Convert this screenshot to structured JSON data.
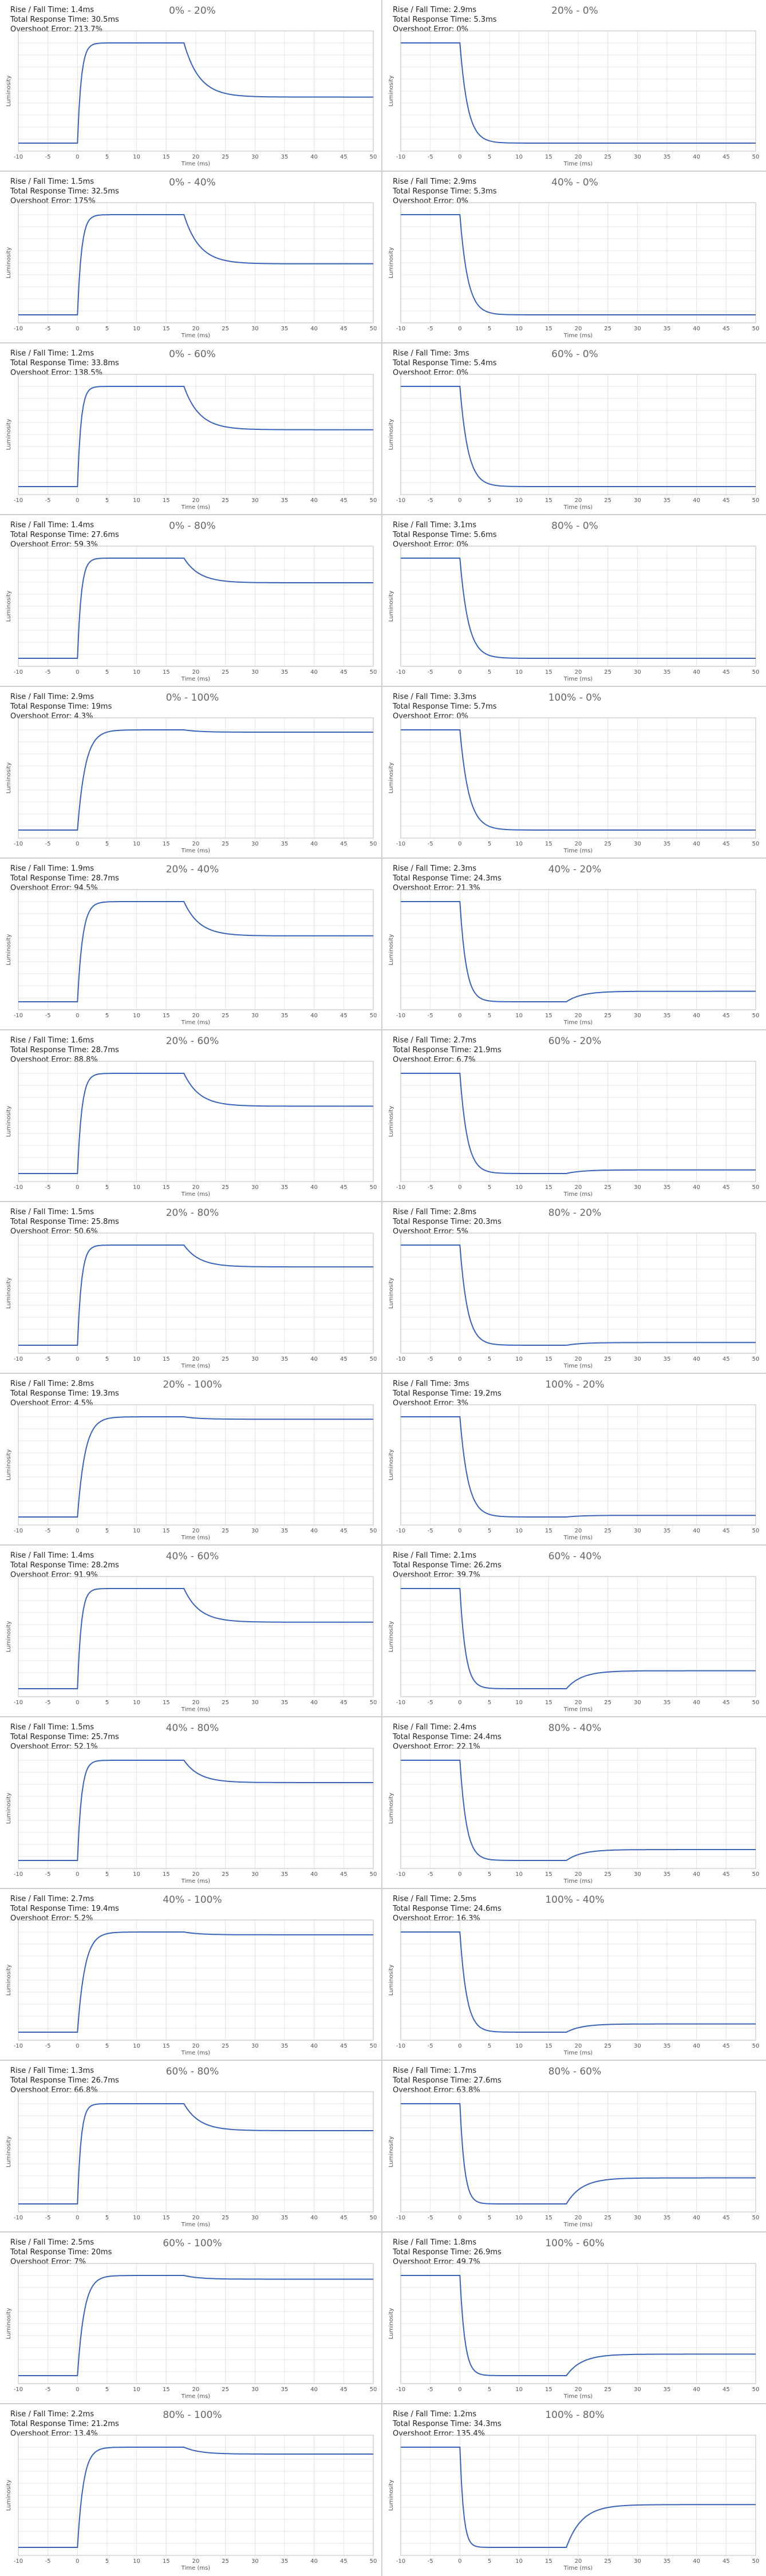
{
  "axis": {
    "xlabel": "Time (ms)",
    "ylabel": "Luminosity",
    "x_ticks": [
      "-10",
      "-5",
      "0",
      "5",
      "10",
      "15",
      "20",
      "25",
      "30",
      "35",
      "40",
      "45",
      "50"
    ],
    "rise_prefix": "Rise / Fall Time: ",
    "total_prefix": "Total Response Time: ",
    "overshoot_prefix": "Overshoot Error: "
  },
  "colors": {
    "line": "#3a63b8",
    "grid": "#e4e4e4",
    "axis": "#666666"
  },
  "chart_data": [
    {
      "type": "line",
      "title": "0% - 20%",
      "rise_fall": "1.4ms",
      "total": "30.5ms",
      "overshoot": "213.7%",
      "xlim": [
        -10,
        50
      ],
      "from": 0,
      "to": 20
    },
    {
      "type": "line",
      "title": "20% - 0%",
      "rise_fall": "2.9ms",
      "total": "5.3ms",
      "overshoot": "0%",
      "xlim": [
        -10,
        50
      ],
      "from": 20,
      "to": 0
    },
    {
      "type": "line",
      "title": "0% - 40%",
      "rise_fall": "1.5ms",
      "total": "32.5ms",
      "overshoot": "175%",
      "xlim": [
        -10,
        50
      ],
      "from": 0,
      "to": 40
    },
    {
      "type": "line",
      "title": "40% - 0%",
      "rise_fall": "2.9ms",
      "total": "5.3ms",
      "overshoot": "0%",
      "xlim": [
        -10,
        50
      ],
      "from": 40,
      "to": 0
    },
    {
      "type": "line",
      "title": "0% - 60%",
      "rise_fall": "1.2ms",
      "total": "33.8ms",
      "overshoot": "138.5%",
      "xlim": [
        -10,
        50
      ],
      "from": 0,
      "to": 60
    },
    {
      "type": "line",
      "title": "60% - 0%",
      "rise_fall": "3ms",
      "total": "5.4ms",
      "overshoot": "0%",
      "xlim": [
        -10,
        50
      ],
      "from": 60,
      "to": 0
    },
    {
      "type": "line",
      "title": "0% - 80%",
      "rise_fall": "1.4ms",
      "total": "27.6ms",
      "overshoot": "59.3%",
      "xlim": [
        -10,
        50
      ],
      "from": 0,
      "to": 80
    },
    {
      "type": "line",
      "title": "80% - 0%",
      "rise_fall": "3.1ms",
      "total": "5.6ms",
      "overshoot": "0%",
      "xlim": [
        -10,
        50
      ],
      "from": 80,
      "to": 0
    },
    {
      "type": "line",
      "title": "0% - 100%",
      "rise_fall": "2.9ms",
      "total": "19ms",
      "overshoot": "4.3%",
      "xlim": [
        -10,
        50
      ],
      "from": 0,
      "to": 100
    },
    {
      "type": "line",
      "title": "100% - 0%",
      "rise_fall": "3.3ms",
      "total": "5.7ms",
      "overshoot": "0%",
      "xlim": [
        -10,
        50
      ],
      "from": 100,
      "to": 0
    },
    {
      "type": "line",
      "title": "20% - 40%",
      "rise_fall": "1.9ms",
      "total": "28.7ms",
      "overshoot": "94.5%",
      "xlim": [
        -10,
        50
      ],
      "from": 20,
      "to": 40
    },
    {
      "type": "line",
      "title": "40% - 20%",
      "rise_fall": "2.3ms",
      "total": "24.3ms",
      "overshoot": "21.3%",
      "xlim": [
        -10,
        50
      ],
      "from": 40,
      "to": 20
    },
    {
      "type": "line",
      "title": "20% - 60%",
      "rise_fall": "1.6ms",
      "total": "28.7ms",
      "overshoot": "88.8%",
      "xlim": [
        -10,
        50
      ],
      "from": 20,
      "to": 60
    },
    {
      "type": "line",
      "title": "60% - 20%",
      "rise_fall": "2.7ms",
      "total": "21.9ms",
      "overshoot": "6.7%",
      "xlim": [
        -10,
        50
      ],
      "from": 60,
      "to": 20
    },
    {
      "type": "line",
      "title": "20% - 80%",
      "rise_fall": "1.5ms",
      "total": "25.8ms",
      "overshoot": "50.6%",
      "xlim": [
        -10,
        50
      ],
      "from": 20,
      "to": 80
    },
    {
      "type": "line",
      "title": "80% - 20%",
      "rise_fall": "2.8ms",
      "total": "20.3ms",
      "overshoot": "5%",
      "xlim": [
        -10,
        50
      ],
      "from": 80,
      "to": 20
    },
    {
      "type": "line",
      "title": "20% - 100%",
      "rise_fall": "2.8ms",
      "total": "19.3ms",
      "overshoot": "4.5%",
      "xlim": [
        -10,
        50
      ],
      "from": 20,
      "to": 100
    },
    {
      "type": "line",
      "title": "100% - 20%",
      "rise_fall": "3ms",
      "total": "19.2ms",
      "overshoot": "3%",
      "xlim": [
        -10,
        50
      ],
      "from": 100,
      "to": 20
    },
    {
      "type": "line",
      "title": "40% - 60%",
      "rise_fall": "1.4ms",
      "total": "28.2ms",
      "overshoot": "91.9%",
      "xlim": [
        -10,
        50
      ],
      "from": 40,
      "to": 60
    },
    {
      "type": "line",
      "title": "60% - 40%",
      "rise_fall": "2.1ms",
      "total": "26.2ms",
      "overshoot": "39.7%",
      "xlim": [
        -10,
        50
      ],
      "from": 60,
      "to": 40
    },
    {
      "type": "line",
      "title": "40% - 80%",
      "rise_fall": "1.5ms",
      "total": "25.7ms",
      "overshoot": "52.1%",
      "xlim": [
        -10,
        50
      ],
      "from": 40,
      "to": 80
    },
    {
      "type": "line",
      "title": "80% - 40%",
      "rise_fall": "2.4ms",
      "total": "24.4ms",
      "overshoot": "22.1%",
      "xlim": [
        -10,
        50
      ],
      "from": 80,
      "to": 40
    },
    {
      "type": "line",
      "title": "40% - 100%",
      "rise_fall": "2.7ms",
      "total": "19.4ms",
      "overshoot": "5.2%",
      "xlim": [
        -10,
        50
      ],
      "from": 40,
      "to": 100
    },
    {
      "type": "line",
      "title": "100% - 40%",
      "rise_fall": "2.5ms",
      "total": "24.6ms",
      "overshoot": "16.3%",
      "xlim": [
        -10,
        50
      ],
      "from": 100,
      "to": 40
    },
    {
      "type": "line",
      "title": "60% - 80%",
      "rise_fall": "1.3ms",
      "total": "26.7ms",
      "overshoot": "66.8%",
      "xlim": [
        -10,
        50
      ],
      "from": 60,
      "to": 80
    },
    {
      "type": "line",
      "title": "80% - 60%",
      "rise_fall": "1.7ms",
      "total": "27.6ms",
      "overshoot": "63.8%",
      "xlim": [
        -10,
        50
      ],
      "from": 80,
      "to": 60
    },
    {
      "type": "line",
      "title": "60% - 100%",
      "rise_fall": "2.5ms",
      "total": "20ms",
      "overshoot": "7%",
      "xlim": [
        -10,
        50
      ],
      "from": 60,
      "to": 100
    },
    {
      "type": "line",
      "title": "100% - 60%",
      "rise_fall": "1.8ms",
      "total": "26.9ms",
      "overshoot": "49.7%",
      "xlim": [
        -10,
        50
      ],
      "from": 100,
      "to": 60
    },
    {
      "type": "line",
      "title": "80% - 100%",
      "rise_fall": "2.2ms",
      "total": "21.2ms",
      "overshoot": "13.4%",
      "xlim": [
        -10,
        50
      ],
      "from": 80,
      "to": 100
    },
    {
      "type": "line",
      "title": "100% - 80%",
      "rise_fall": "1.2ms",
      "total": "34.3ms",
      "overshoot": "135.4%",
      "xlim": [
        -10,
        50
      ],
      "from": 100,
      "to": 80
    }
  ]
}
